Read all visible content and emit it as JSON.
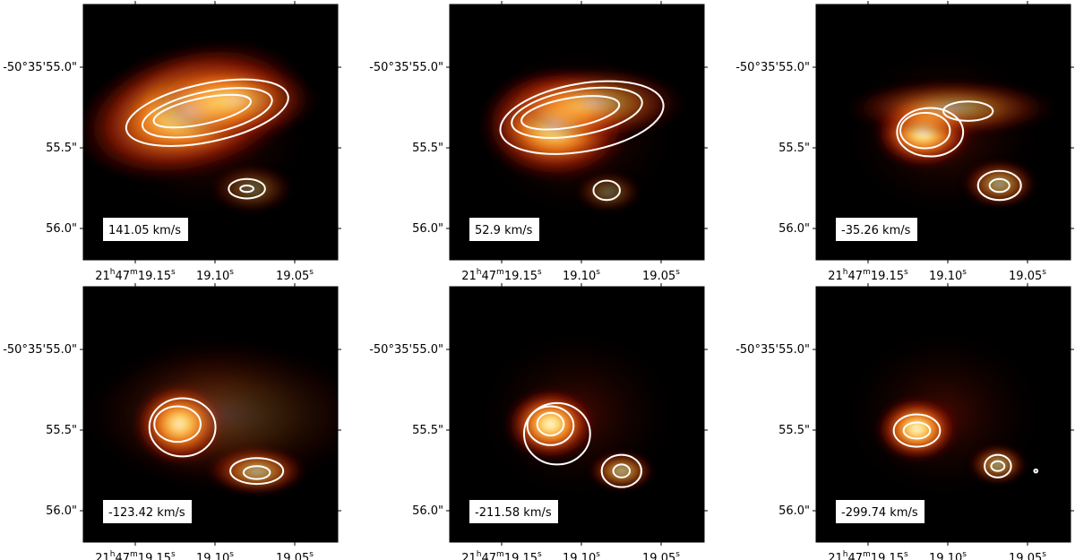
{
  "chart_data": [
    {
      "type": "heatmap",
      "velocity_label": "141.05 km/s",
      "yticks": [
        "-50°35'55.0\"",
        "55.5\"",
        "56.0\""
      ],
      "xticks": [
        {
          "h": "21",
          "m": "47",
          "s": "19.15",
          "su": "s"
        },
        {
          "v": "19.10",
          "su": "s"
        },
        {
          "v": "19.05",
          "su": "s"
        }
      ],
      "blobs": [
        {
          "ra": 19.112,
          "dec": 55.27,
          "sx": 0.028,
          "sy": 0.16,
          "amp": 1.0,
          "rot": -15
        },
        {
          "ra": 19.085,
          "dec": 55.2,
          "sx": 0.02,
          "sy": 0.1,
          "amp": 0.55,
          "rot": 0
        },
        {
          "ra": 19.075,
          "dec": 55.75,
          "sx": 0.01,
          "sy": 0.06,
          "amp": 0.35,
          "rot": 0
        }
      ],
      "contours": [
        {
          "ra": 19.102,
          "dec": 55.28,
          "rx": 0.05,
          "ry": 0.18,
          "rot": -12
        },
        {
          "ra": 19.102,
          "dec": 55.28,
          "rx": 0.04,
          "ry": 0.13,
          "rot": -12
        },
        {
          "ra": 19.105,
          "dec": 55.27,
          "rx": 0.03,
          "ry": 0.08,
          "rot": -12
        },
        {
          "ra": 19.078,
          "dec": 55.75,
          "rx": 0.011,
          "ry": 0.06,
          "rot": 0
        },
        {
          "ra": 19.078,
          "dec": 55.75,
          "rx": 0.004,
          "ry": 0.02,
          "rot": 0
        }
      ]
    },
    {
      "type": "heatmap",
      "velocity_label": "52.9 km/s",
      "yticks": [
        "-50°35'55.0\"",
        "55.5\"",
        "56.0\""
      ],
      "xticks": [
        {
          "h": "21",
          "m": "47",
          "s": "19.15",
          "su": "s"
        },
        {
          "v": "19.10",
          "su": "s"
        },
        {
          "v": "19.05",
          "su": "s"
        }
      ],
      "blobs": [
        {
          "ra": 19.113,
          "dec": 55.35,
          "sx": 0.018,
          "sy": 0.14,
          "amp": 1.0,
          "rot": 0
        },
        {
          "ra": 19.09,
          "dec": 55.22,
          "sx": 0.022,
          "sy": 0.09,
          "amp": 0.6,
          "rot": 0
        },
        {
          "ra": 19.081,
          "dec": 55.77,
          "sx": 0.008,
          "sy": 0.05,
          "amp": 0.35,
          "rot": 0
        }
      ],
      "contours": [
        {
          "ra": 19.097,
          "dec": 55.31,
          "rx": 0.05,
          "ry": 0.21,
          "rot": -10
        },
        {
          "ra": 19.1,
          "dec": 55.28,
          "rx": 0.04,
          "ry": 0.14,
          "rot": -10
        },
        {
          "ra": 19.104,
          "dec": 55.28,
          "rx": 0.03,
          "ry": 0.09,
          "rot": -10
        },
        {
          "ra": 19.082,
          "dec": 55.76,
          "rx": 0.008,
          "ry": 0.06,
          "rot": 0
        }
      ]
    },
    {
      "type": "heatmap",
      "velocity_label": "-35.26 km/s",
      "yticks": [
        "-50°35'55.0\"",
        "55.5\"",
        "56.0\""
      ],
      "xticks": [
        {
          "h": "21",
          "m": "47",
          "s": "19.15",
          "su": "s"
        },
        {
          "v": "19.10",
          "su": "s"
        },
        {
          "v": "19.05",
          "su": "s"
        }
      ],
      "blobs": [
        {
          "ra": 19.112,
          "dec": 55.4,
          "sx": 0.012,
          "sy": 0.09,
          "amp": 1.0,
          "rot": 0
        },
        {
          "ra": 19.095,
          "dec": 55.25,
          "sx": 0.025,
          "sy": 0.07,
          "amp": 0.55,
          "rot": 0
        },
        {
          "ra": 19.066,
          "dec": 55.72,
          "sx": 0.009,
          "sy": 0.06,
          "amp": 0.6,
          "rot": 0
        }
      ],
      "contours": [
        {
          "ra": 19.108,
          "dec": 55.4,
          "rx": 0.02,
          "ry": 0.15,
          "rot": 0
        },
        {
          "ra": 19.111,
          "dec": 55.39,
          "rx": 0.015,
          "ry": 0.11,
          "rot": 0
        },
        {
          "ra": 19.085,
          "dec": 55.27,
          "rx": 0.015,
          "ry": 0.06,
          "rot": 0
        },
        {
          "ra": 19.066,
          "dec": 55.73,
          "rx": 0.013,
          "ry": 0.09,
          "rot": 0
        },
        {
          "ra": 19.066,
          "dec": 55.73,
          "rx": 0.006,
          "ry": 0.04,
          "rot": 0
        }
      ]
    },
    {
      "type": "heatmap",
      "velocity_label": "-123.42 km/s",
      "yticks": [
        "-50°35'55.0\"",
        "55.5\"",
        "56.0\""
      ],
      "xticks": [
        {
          "h": "21",
          "m": "47",
          "s": "19.15",
          "su": "s"
        },
        {
          "v": "19.10",
          "su": "s"
        },
        {
          "v": "19.05",
          "su": "s"
        }
      ],
      "blobs": [
        {
          "ra": 19.119,
          "dec": 55.46,
          "sx": 0.011,
          "sy": 0.1,
          "amp": 1.0,
          "rot": 0
        },
        {
          "ra": 19.072,
          "dec": 55.75,
          "sx": 0.012,
          "sy": 0.06,
          "amp": 0.7,
          "rot": 0
        },
        {
          "ra": 19.09,
          "dec": 55.4,
          "sx": 0.035,
          "sy": 0.18,
          "amp": 0.18,
          "rot": 0
        }
      ],
      "contours": [
        {
          "ra": 19.117,
          "dec": 55.48,
          "rx": 0.02,
          "ry": 0.18,
          "rot": 0
        },
        {
          "ra": 19.12,
          "dec": 55.46,
          "rx": 0.014,
          "ry": 0.11,
          "rot": 0
        },
        {
          "ra": 19.072,
          "dec": 55.75,
          "rx": 0.016,
          "ry": 0.08,
          "rot": 0
        },
        {
          "ra": 19.072,
          "dec": 55.76,
          "rx": 0.008,
          "ry": 0.04,
          "rot": 0
        }
      ]
    },
    {
      "type": "heatmap",
      "velocity_label": "-211.58 km/s",
      "yticks": [
        "-50°35'55.0\"",
        "55.5\"",
        "56.0\""
      ],
      "xticks": [
        {
          "h": "21",
          "m": "47",
          "s": "19.15",
          "su": "s"
        },
        {
          "v": "19.10",
          "su": "s"
        },
        {
          "v": "19.05",
          "su": "s"
        }
      ],
      "blobs": [
        {
          "ra": 19.116,
          "dec": 55.46,
          "sx": 0.011,
          "sy": 0.09,
          "amp": 1.0,
          "rot": 0
        },
        {
          "ra": 19.073,
          "dec": 55.75,
          "sx": 0.008,
          "sy": 0.05,
          "amp": 0.65,
          "rot": 0
        }
      ],
      "contours": [
        {
          "ra": 19.112,
          "dec": 55.52,
          "rx": 0.02,
          "ry": 0.19,
          "rot": 0
        },
        {
          "ra": 19.116,
          "dec": 55.47,
          "rx": 0.014,
          "ry": 0.12,
          "rot": 0
        },
        {
          "ra": 19.116,
          "dec": 55.46,
          "rx": 0.008,
          "ry": 0.07,
          "rot": 0
        },
        {
          "ra": 19.073,
          "dec": 55.75,
          "rx": 0.012,
          "ry": 0.1,
          "rot": 0
        },
        {
          "ra": 19.073,
          "dec": 55.75,
          "rx": 0.005,
          "ry": 0.04,
          "rot": 0
        }
      ]
    },
    {
      "type": "heatmap",
      "velocity_label": "-299.74 km/s",
      "yticks": [
        "-50°35'55.0\"",
        "55.5\"",
        "56.0\""
      ],
      "xticks": [
        {
          "h": "21",
          "m": "47",
          "s": "19.15",
          "su": "s"
        },
        {
          "v": "19.10",
          "su": "s"
        },
        {
          "v": "19.05",
          "su": "s"
        }
      ],
      "blobs": [
        {
          "ra": 19.116,
          "dec": 55.49,
          "sx": 0.01,
          "sy": 0.08,
          "amp": 1.0,
          "rot": 0
        },
        {
          "ra": 19.067,
          "dec": 55.71,
          "sx": 0.007,
          "sy": 0.05,
          "amp": 0.6,
          "rot": 0
        }
      ],
      "contours": [
        {
          "ra": 19.116,
          "dec": 55.5,
          "rx": 0.014,
          "ry": 0.1,
          "rot": 0
        },
        {
          "ra": 19.116,
          "dec": 55.5,
          "rx": 0.008,
          "ry": 0.05,
          "rot": 0
        },
        {
          "ra": 19.067,
          "dec": 55.72,
          "rx": 0.008,
          "ry": 0.07,
          "rot": 0
        },
        {
          "ra": 19.067,
          "dec": 55.72,
          "rx": 0.004,
          "ry": 0.03,
          "rot": 0
        },
        {
          "ra": 19.044,
          "dec": 55.75,
          "rx": 0.001,
          "ry": 0.01,
          "rot": 0
        }
      ]
    }
  ]
}
